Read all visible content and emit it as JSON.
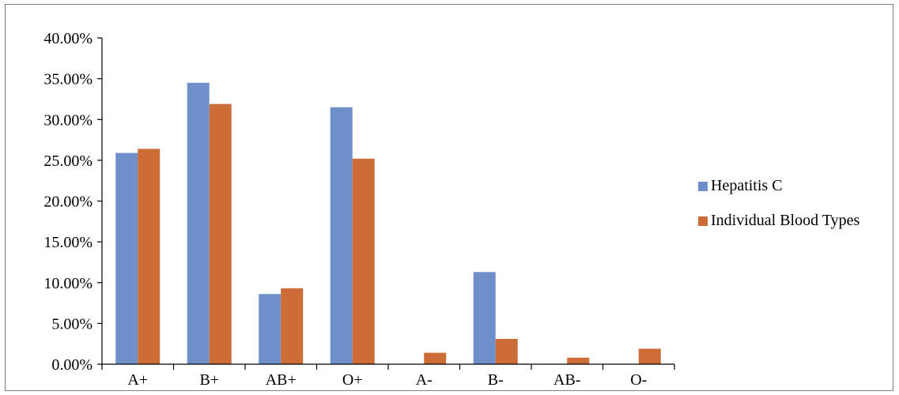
{
  "chart_data": {
    "type": "bar",
    "categories": [
      "A+",
      "B+",
      "AB+",
      "O+",
      "A-",
      "B-",
      "AB-",
      "O-"
    ],
    "series": [
      {
        "name": "Hepatitis C",
        "color": "#6f8fcb",
        "values": [
          25.9,
          34.5,
          8.6,
          31.5,
          0.0,
          11.3,
          0.0,
          0.0
        ]
      },
      {
        "name": "Individual Blood Types",
        "color": "#cc6d38",
        "values": [
          26.4,
          31.9,
          9.3,
          25.2,
          1.4,
          3.1,
          0.8,
          1.9
        ]
      }
    ],
    "ylim": [
      0,
      40
    ],
    "ytick_step": 5,
    "ytick_labels": [
      "0.00%",
      "5.00%",
      "10.00%",
      "15.00%",
      "20.00%",
      "25.00%",
      "30.00%",
      "35.00%",
      "40.00%"
    ],
    "title": "",
    "xlabel": "",
    "ylabel": "",
    "grid": false,
    "legend_position": "right"
  }
}
